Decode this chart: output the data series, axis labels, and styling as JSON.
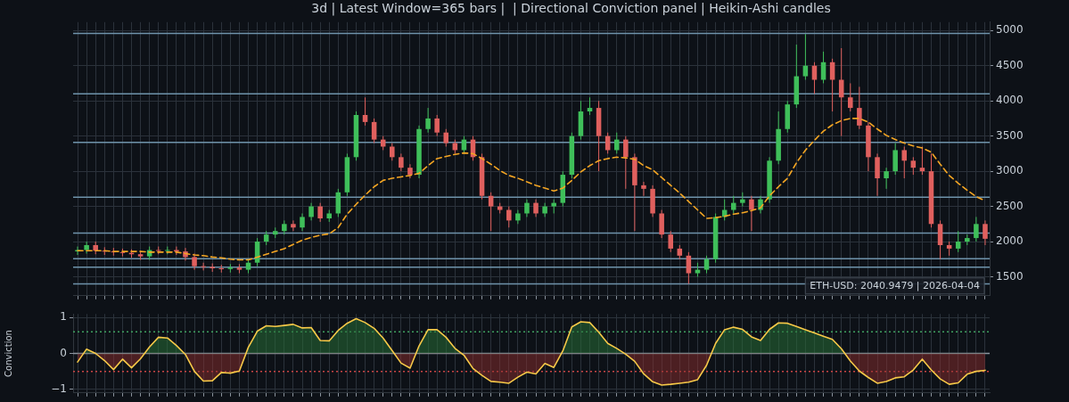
{
  "chart_data": [
    {
      "type": "candlestick",
      "title": "3d | Latest Window=365 bars |  | Directional Conviction panel | Heikin-Ashi candles",
      "categories": [
        null,
        null,
        null,
        null,
        null,
        null,
        null,
        null,
        null,
        null,
        null,
        null,
        null,
        null,
        null,
        null,
        null,
        null,
        null,
        null,
        null,
        null,
        null,
        null,
        null,
        null,
        null,
        null,
        null,
        null,
        null,
        null,
        null,
        null,
        null,
        null,
        null,
        null,
        null,
        null,
        null,
        null,
        null,
        null,
        null,
        null,
        null,
        null,
        null,
        null,
        null,
        null,
        null,
        null,
        null,
        null,
        null,
        null,
        null,
        null,
        null,
        null,
        null,
        null,
        null,
        null,
        null,
        null,
        null,
        null,
        null,
        null,
        null,
        null,
        null,
        null,
        null,
        null,
        null,
        null,
        null,
        null,
        null,
        null,
        null,
        null,
        null,
        null,
        null,
        null,
        null,
        null,
        null,
        null,
        null,
        null,
        null,
        null,
        null,
        null,
        null,
        null
      ],
      "ohlc": [
        [
          1860,
          1930,
          1810,
          1880
        ],
        [
          1880,
          2000,
          1830,
          1950
        ],
        [
          1950,
          2000,
          1820,
          1870
        ],
        [
          1870,
          1920,
          1810,
          1860
        ],
        [
          1860,
          1910,
          1800,
          1850
        ],
        [
          1850,
          1900,
          1790,
          1840
        ],
        [
          1840,
          1890,
          1770,
          1820
        ],
        [
          1820,
          1870,
          1740,
          1790
        ],
        [
          1790,
          1930,
          1740,
          1880
        ],
        [
          1880,
          1930,
          1820,
          1870
        ],
        [
          1870,
          1930,
          1820,
          1880
        ],
        [
          1880,
          1930,
          1810,
          1860
        ],
        [
          1860,
          1910,
          1730,
          1780
        ],
        [
          1780,
          1830,
          1600,
          1650
        ],
        [
          1650,
          1700,
          1590,
          1640
        ],
        [
          1640,
          1690,
          1570,
          1620
        ],
        [
          1620,
          1670,
          1560,
          1610
        ],
        [
          1610,
          1680,
          1560,
          1630
        ],
        [
          1630,
          1680,
          1550,
          1600
        ],
        [
          1600,
          1750,
          1550,
          1700
        ],
        [
          1700,
          2050,
          1650,
          2000
        ],
        [
          2000,
          2150,
          1950,
          2100
        ],
        [
          2100,
          2200,
          2050,
          2150
        ],
        [
          2150,
          2300,
          2100,
          2250
        ],
        [
          2250,
          2300,
          2150,
          2200
        ],
        [
          2200,
          2400,
          2150,
          2350
        ],
        [
          2350,
          2550,
          2300,
          2500
        ],
        [
          2500,
          2550,
          2280,
          2330
        ],
        [
          2330,
          2450,
          2280,
          2400
        ],
        [
          2400,
          2750,
          2350,
          2700
        ],
        [
          2700,
          3250,
          2650,
          3200
        ],
        [
          3200,
          3850,
          3150,
          3800
        ],
        [
          3800,
          4050,
          3650,
          3700
        ],
        [
          3700,
          3750,
          3400,
          3450
        ],
        [
          3450,
          3500,
          3300,
          3350
        ],
        [
          3350,
          3400,
          3150,
          3200
        ],
        [
          3200,
          3250,
          3000,
          3050
        ],
        [
          3050,
          3100,
          2900,
          2950
        ],
        [
          2950,
          3650,
          2900,
          3600
        ],
        [
          3600,
          3900,
          3550,
          3750
        ],
        [
          3750,
          3800,
          3500,
          3550
        ],
        [
          3550,
          3600,
          3350,
          3400
        ],
        [
          3400,
          3450,
          3250,
          3300
        ],
        [
          3300,
          3500,
          3250,
          3450
        ],
        [
          3450,
          3500,
          3150,
          3200
        ],
        [
          3200,
          3250,
          2600,
          2650
        ],
        [
          2650,
          2700,
          2150,
          2500
        ],
        [
          2500,
          2550,
          2400,
          2450
        ],
        [
          2450,
          2500,
          2200,
          2300
        ],
        [
          2300,
          2450,
          2250,
          2400
        ],
        [
          2400,
          2600,
          2350,
          2550
        ],
        [
          2550,
          2600,
          2350,
          2400
        ],
        [
          2400,
          2550,
          2350,
          2500
        ],
        [
          2500,
          2600,
          2400,
          2550
        ],
        [
          2550,
          3000,
          2500,
          2950
        ],
        [
          2950,
          3550,
          2900,
          3500
        ],
        [
          3500,
          4000,
          3450,
          3850
        ],
        [
          3850,
          4050,
          3800,
          3900
        ],
        [
          3900,
          4000,
          3000,
          3500
        ],
        [
          3500,
          3550,
          3250,
          3300
        ],
        [
          3300,
          3550,
          3250,
          3450
        ],
        [
          3450,
          3500,
          2750,
          3200
        ],
        [
          3200,
          3250,
          2150,
          2800
        ],
        [
          2800,
          2850,
          2650,
          2750
        ],
        [
          2750,
          2800,
          2350,
          2400
        ],
        [
          2400,
          2450,
          2050,
          2100
        ],
        [
          2100,
          2150,
          1850,
          1900
        ],
        [
          1900,
          1950,
          1750,
          1800
        ],
        [
          1800,
          1850,
          1400,
          1550
        ],
        [
          1550,
          1700,
          1500,
          1600
        ],
        [
          1600,
          1800,
          1550,
          1750
        ],
        [
          1750,
          2400,
          1700,
          2350
        ],
        [
          2350,
          2600,
          2300,
          2450
        ],
        [
          2450,
          2650,
          2400,
          2550
        ],
        [
          2550,
          2700,
          2500,
          2600
        ],
        [
          2600,
          2650,
          2150,
          2450
        ],
        [
          2450,
          2650,
          2400,
          2600
        ],
        [
          2600,
          3200,
          2550,
          3150
        ],
        [
          3150,
          3850,
          3100,
          3600
        ],
        [
          3600,
          4000,
          3550,
          3950
        ],
        [
          3950,
          4800,
          3900,
          4350
        ],
        [
          4350,
          4950,
          4300,
          4500
        ],
        [
          4500,
          4550,
          4100,
          4300
        ],
        [
          4300,
          4700,
          4250,
          4550
        ],
        [
          4550,
          4600,
          3850,
          4300
        ],
        [
          4300,
          4750,
          3500,
          4050
        ],
        [
          4050,
          4250,
          3850,
          3900
        ],
        [
          3900,
          4200,
          3600,
          3650
        ],
        [
          3650,
          3700,
          3000,
          3200
        ],
        [
          3200,
          3250,
          2650,
          2900
        ],
        [
          2900,
          3050,
          2750,
          3000
        ],
        [
          3000,
          3400,
          2950,
          3300
        ],
        [
          3300,
          3350,
          2900,
          3150
        ],
        [
          3150,
          3200,
          2950,
          3050
        ],
        [
          3050,
          3350,
          2950,
          3000
        ],
        [
          3000,
          3250,
          2200,
          2250
        ],
        [
          2250,
          2300,
          1750,
          1950
        ],
        [
          1950,
          2000,
          1800,
          1900
        ],
        [
          1900,
          2150,
          1850,
          2000
        ],
        [
          2000,
          2100,
          1950,
          2050
        ],
        [
          2050,
          2350,
          2000,
          2250
        ],
        [
          2250,
          2300,
          1950,
          2040
        ]
      ],
      "series": [
        {
          "type": "line",
          "color": "#f5a623",
          "line_style": "dashed",
          "values": [
            1870,
            1870,
            1870,
            1870,
            1860,
            1860,
            1860,
            1860,
            1850,
            1850,
            1850,
            1850,
            1830,
            1810,
            1800,
            1780,
            1770,
            1750,
            1740,
            1740,
            1780,
            1820,
            1860,
            1900,
            1960,
            2020,
            2060,
            2090,
            2110,
            2200,
            2390,
            2530,
            2660,
            2780,
            2870,
            2900,
            2920,
            2940,
            2970,
            3080,
            3180,
            3210,
            3240,
            3260,
            3250,
            3180,
            3100,
            3010,
            2940,
            2900,
            2850,
            2800,
            2760,
            2720,
            2760,
            2870,
            2990,
            3080,
            3150,
            3180,
            3200,
            3190,
            3170,
            3080,
            3020,
            2910,
            2800,
            2690,
            2570,
            2450,
            2330,
            2340,
            2360,
            2390,
            2410,
            2440,
            2480,
            2650,
            2780,
            2900,
            3120,
            3300,
            3440,
            3570,
            3660,
            3720,
            3750,
            3750,
            3700,
            3600,
            3510,
            3450,
            3400,
            3360,
            3330,
            3270,
            3100,
            2940,
            2830,
            2730,
            2640,
            2580
          ]
        }
      ],
      "ylim": [
        1230,
        5120
      ],
      "yticks": [
        1500,
        2000,
        2500,
        3000,
        3500,
        4000,
        4500,
        5000
      ],
      "tick_labels": "y",
      "grid": true,
      "ref_lines": [
        {
          "axis": "y",
          "value": 4960,
          "color": "#6f93ab"
        },
        {
          "axis": "y",
          "value": 4100,
          "color": "#6f93ab"
        },
        {
          "axis": "y",
          "value": 3410,
          "color": "#6f93ab"
        },
        {
          "axis": "y",
          "value": 2630,
          "color": "#6f93ab"
        },
        {
          "axis": "y",
          "value": 2120,
          "color": "#6f93ab"
        },
        {
          "axis": "y",
          "value": 1755,
          "color": "#6f93ab"
        },
        {
          "axis": "y",
          "value": 1635,
          "color": "#6f93ab"
        },
        {
          "axis": "y",
          "value": 1400,
          "color": "#6f93ab"
        }
      ],
      "annotations": [
        "ETH-USD: 2040.9479 | 2026-04-04"
      ]
    },
    {
      "type": "line",
      "ylabel": "Conviction",
      "ylim": [
        -1.1,
        1.1
      ],
      "yticks": [
        {
          "value": -1,
          "label": "−1"
        },
        0,
        1
      ],
      "tick_labels": "y",
      "grid": true,
      "categories": [
        null,
        null,
        null,
        null,
        null,
        null,
        null,
        null,
        null,
        null,
        null,
        null,
        null,
        null,
        null,
        null,
        null,
        null,
        null,
        null,
        null,
        null,
        null,
        null,
        null,
        null,
        null,
        null,
        null,
        null,
        null,
        null,
        null,
        null,
        null,
        null,
        null,
        null,
        null,
        null,
        null,
        null,
        null,
        null,
        null,
        null,
        null,
        null,
        null,
        null,
        null,
        null,
        null,
        null,
        null,
        null,
        null,
        null,
        null,
        null,
        null,
        null,
        null,
        null,
        null,
        null,
        null,
        null,
        null,
        null,
        null,
        null,
        null,
        null,
        null,
        null,
        null,
        null,
        null,
        null,
        null,
        null,
        null,
        null,
        null,
        null,
        null,
        null,
        null,
        null,
        null,
        null,
        null,
        null,
        null,
        null,
        null,
        null,
        null,
        null,
        null,
        null
      ],
      "series": [
        {
          "type": "line",
          "color": "#f7c948",
          "values": [
            -0.24,
            0.12,
            0.0,
            -0.2,
            -0.45,
            -0.16,
            -0.4,
            -0.15,
            0.18,
            0.45,
            0.43,
            0.22,
            -0.03,
            -0.5,
            -0.77,
            -0.76,
            -0.53,
            -0.55,
            -0.49,
            0.17,
            0.62,
            0.77,
            0.75,
            0.78,
            0.81,
            0.71,
            0.72,
            0.36,
            0.35,
            0.64,
            0.84,
            0.97,
            0.86,
            0.7,
            0.43,
            0.08,
            -0.27,
            -0.41,
            0.21,
            0.66,
            0.66,
            0.45,
            0.14,
            -0.05,
            -0.42,
            -0.61,
            -0.78,
            -0.8,
            -0.83,
            -0.66,
            -0.52,
            -0.57,
            -0.28,
            -0.39,
            0.07,
            0.74,
            0.88,
            0.86,
            0.59,
            0.28,
            0.14,
            -0.02,
            -0.22,
            -0.57,
            -0.79,
            -0.88,
            -0.86,
            -0.83,
            -0.8,
            -0.73,
            -0.33,
            0.28,
            0.66,
            0.73,
            0.67,
            0.46,
            0.36,
            0.67,
            0.85,
            0.84,
            0.75,
            0.66,
            0.57,
            0.48,
            0.39,
            0.13,
            -0.21,
            -0.49,
            -0.67,
            -0.83,
            -0.78,
            -0.68,
            -0.65,
            -0.46,
            -0.16,
            -0.46,
            -0.71,
            -0.86,
            -0.82,
            -0.58,
            -0.5,
            -0.47
          ]
        }
      ],
      "ref_lines": [
        {
          "axis": "y",
          "value": 0,
          "color": "#8b949e"
        },
        {
          "axis": "y",
          "value": 0.6,
          "color": "#3fa060",
          "line_style": "dotted"
        },
        {
          "axis": "y",
          "value": -0.5,
          "color": "#c94545",
          "line_style": "dotted"
        }
      ]
    }
  ]
}
